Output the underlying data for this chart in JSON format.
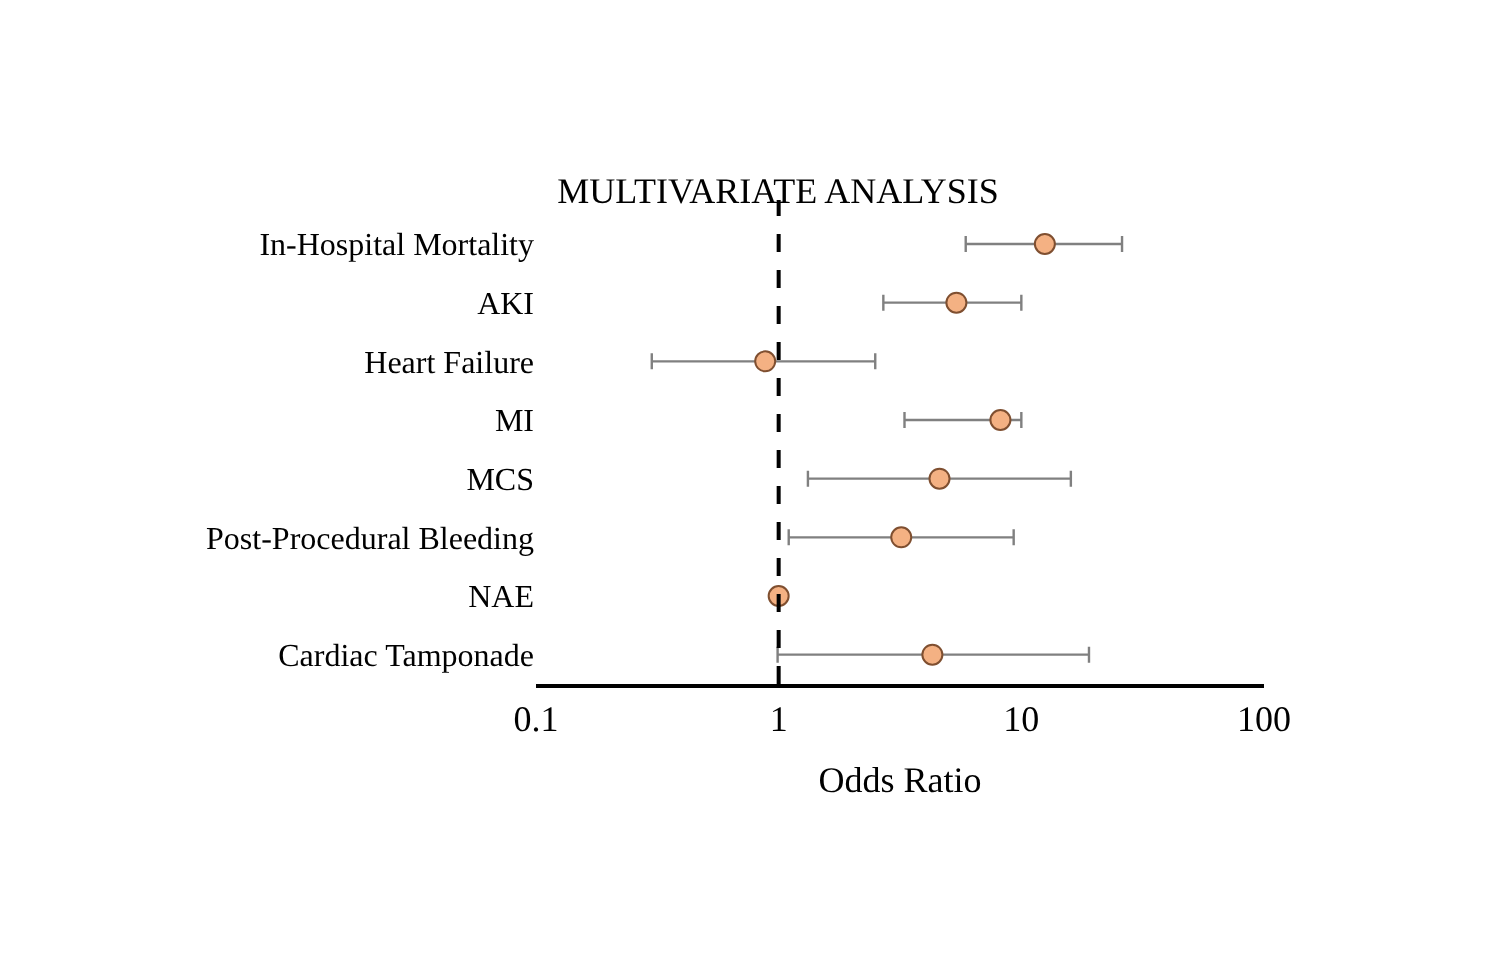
{
  "chart_data": {
    "type": "scatter",
    "title": "MULTIVARIATE ANALYSIS",
    "xlabel": "Odds Ratio",
    "categories": [
      "In-Hospital Mortality",
      "AKI",
      "Heart Failure",
      "MI",
      "MCS",
      "Post-Procedural Bleeding",
      "NAE",
      "Cardiac Tamponade"
    ],
    "orientation": "horizontal",
    "series": [
      {
        "color": "#f4b183",
        "values": [
          12.5,
          5.4,
          0.88,
          8.2,
          4.6,
          3.2,
          1.0,
          4.3
        ],
        "errors": [
          [
            5.9,
            26
          ],
          [
            2.7,
            10
          ],
          [
            0.3,
            2.5
          ],
          [
            3.3,
            10
          ],
          [
            1.32,
            16
          ],
          [
            1.1,
            9.3
          ],
          null,
          [
            0.99,
            19
          ]
        ]
      }
    ],
    "log": "x",
    "xlim": [
      0.1,
      100
    ],
    "xticks": [
      0.1,
      1,
      10,
      100
    ],
    "marker": "circle",
    "ref_lines": [
      {
        "axis": "x",
        "value": 1,
        "color": "#000000",
        "line_style": "dashed"
      }
    ]
  }
}
